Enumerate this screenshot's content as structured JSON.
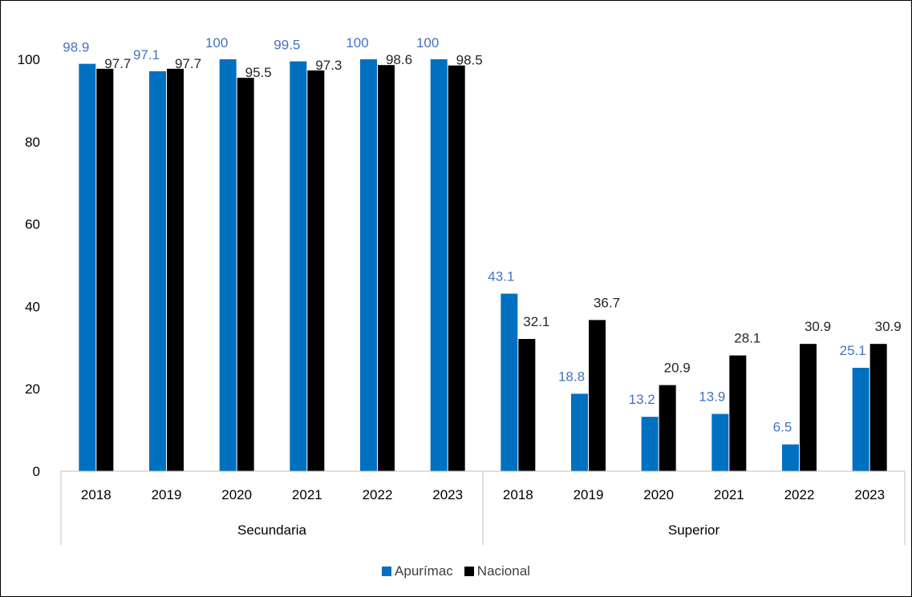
{
  "chart_data": {
    "type": "bar",
    "groups": [
      {
        "label": "Secundaria",
        "categories": [
          "2018",
          "2019",
          "2020",
          "2021",
          "2022",
          "2023"
        ]
      },
      {
        "label": "Superior",
        "categories": [
          "2018",
          "2019",
          "2020",
          "2021",
          "2022",
          "2023"
        ]
      }
    ],
    "series": [
      {
        "name": "Apurímac",
        "color": "#0070C0",
        "label_color": "#4472C4",
        "values": [
          98.9,
          97.1,
          100,
          99.5,
          100,
          100,
          43.1,
          18.8,
          13.2,
          13.9,
          6.5,
          25.1
        ]
      },
      {
        "name": "Nacional",
        "color": "#000000",
        "label_color": "#262626",
        "values": [
          97.7,
          97.7,
          95.5,
          97.3,
          98.6,
          98.5,
          32.1,
          36.7,
          20.9,
          28.1,
          30.9,
          30.9
        ]
      }
    ],
    "data_labels": [
      [
        "98.9",
        "97.1",
        "100",
        "99.5",
        "100",
        "100",
        "43.1",
        "18.8",
        "13.2",
        "13.9",
        "6.5",
        "25.1"
      ],
      [
        "97.7",
        "97.7",
        "95.5",
        "97.3",
        "98.6",
        "98.5",
        "32.1",
        "36.7",
        "20.9",
        "28.1",
        "30.9",
        "30.9"
      ]
    ],
    "ylim": [
      0,
      100
    ],
    "yticks": [
      "0",
      "20",
      "40",
      "60",
      "80",
      "100"
    ],
    "grid": false,
    "legend_position": "bottom"
  }
}
